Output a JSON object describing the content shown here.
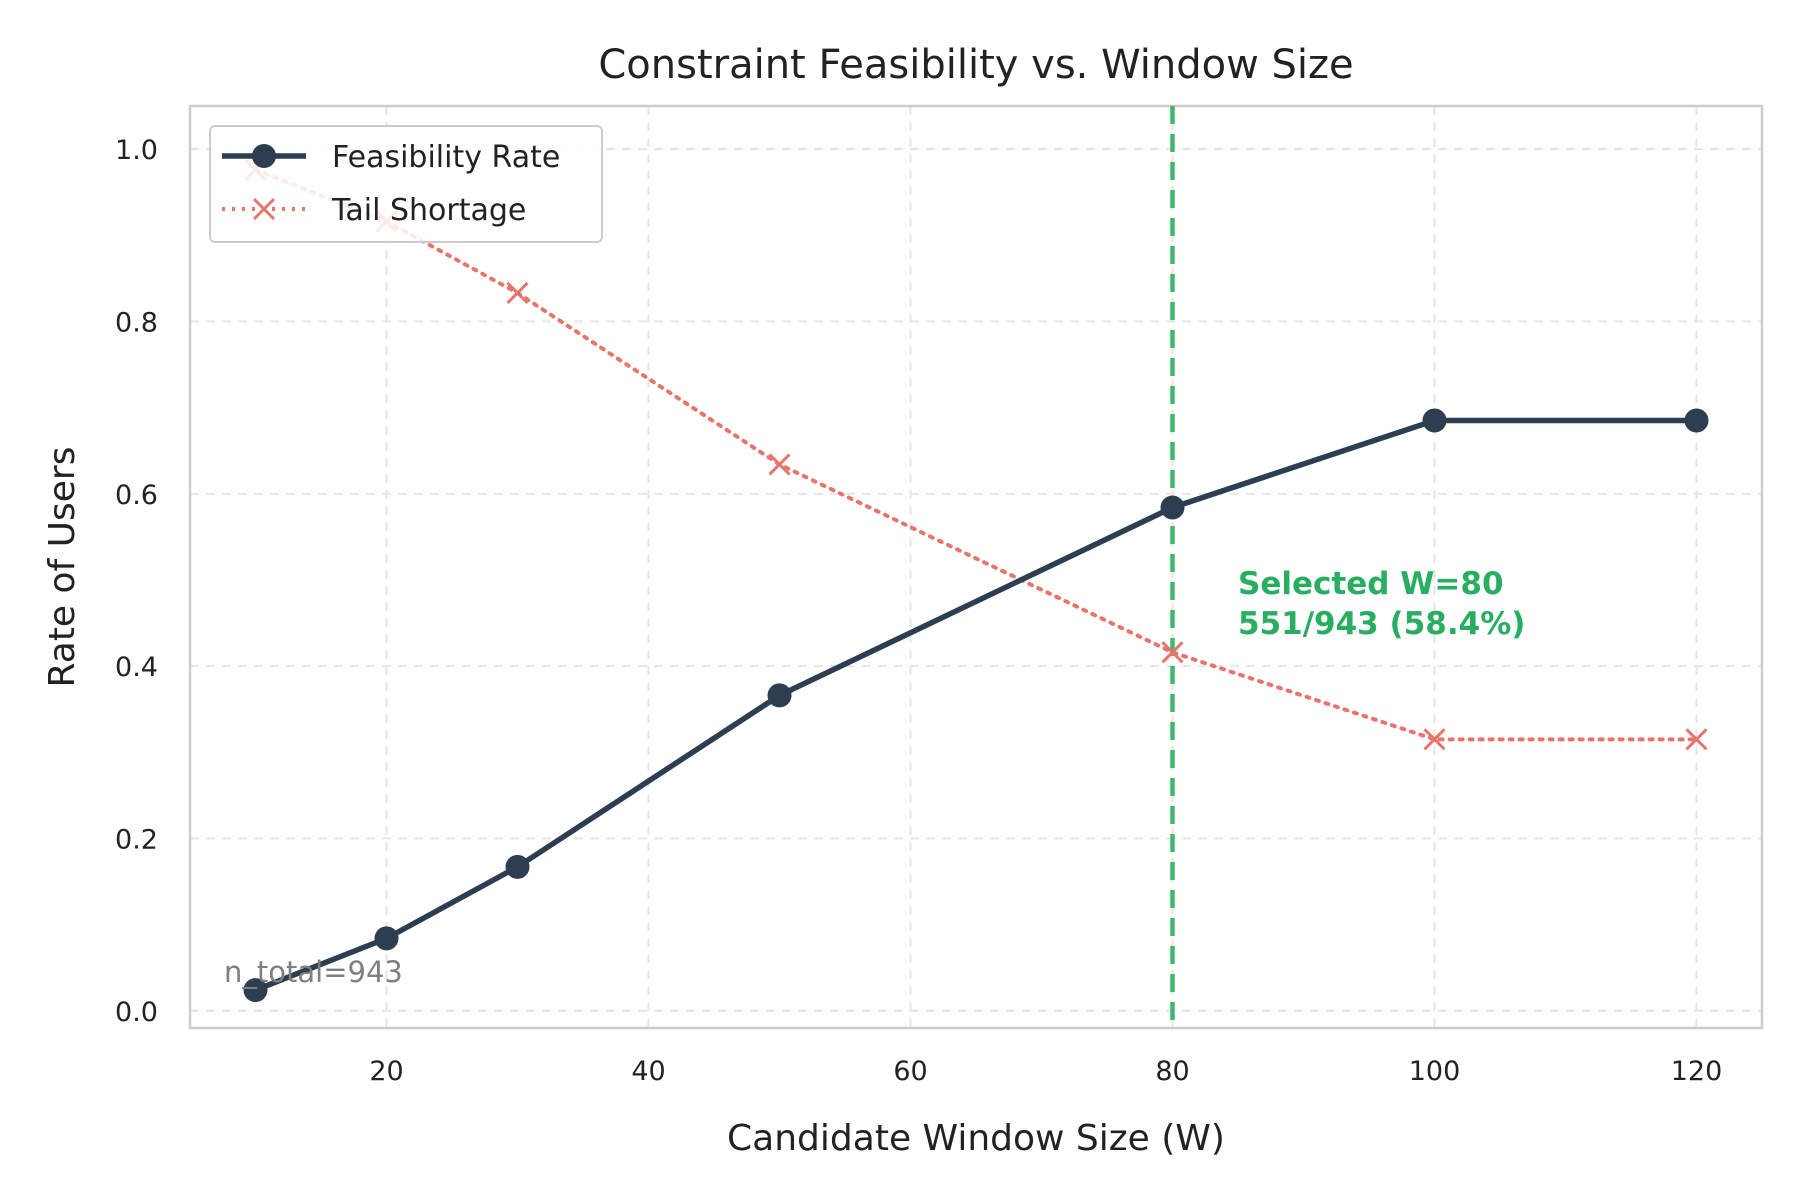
{
  "chart_data": {
    "type": "line",
    "title": "Constraint Feasibility vs. Window Size",
    "xlabel": "Candidate Window Size (W)",
    "ylabel": "Rate of Users",
    "xlim": [
      5,
      125
    ],
    "ylim": [
      -0.02,
      1.05
    ],
    "xticks": [
      20,
      40,
      60,
      80,
      100,
      120
    ],
    "yticks": [
      0.0,
      0.2,
      0.4,
      0.6,
      0.8,
      1.0
    ],
    "x": [
      10,
      20,
      30,
      50,
      80,
      100,
      120
    ],
    "grid": true,
    "legend_position": "top-left",
    "series": [
      {
        "name": "Feasibility Rate",
        "values": [
          0.024,
          0.084,
          0.167,
          0.366,
          0.584,
          0.685,
          0.685
        ],
        "color": "#2c3e50",
        "style": "solid",
        "marker": "circle"
      },
      {
        "name": "Tail Shortage",
        "values": [
          0.976,
          0.916,
          0.833,
          0.634,
          0.416,
          0.315,
          0.315
        ],
        "color": "#e8756b",
        "style": "dotted",
        "marker": "x"
      }
    ],
    "vline": {
      "x": 80,
      "color": "#3fb86e"
    },
    "annotation": {
      "lines": [
        "Selected W=80",
        "551/943 (58.4%)"
      ],
      "x": 85,
      "y": 0.47,
      "color": "#27ae60"
    },
    "note": "n_total=943"
  }
}
